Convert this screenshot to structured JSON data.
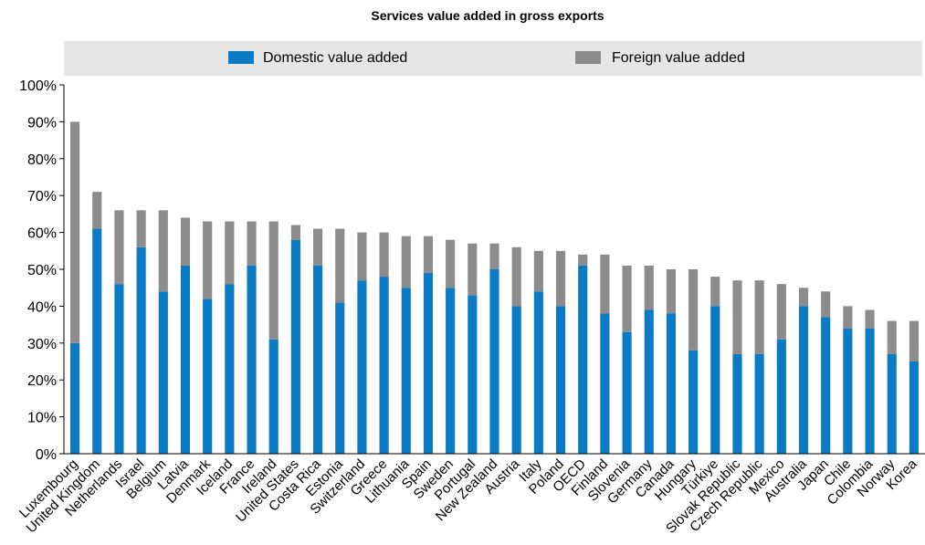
{
  "chart_data": {
    "type": "bar",
    "stacked": true,
    "title": "Services value added in gross exports",
    "ylim": [
      0,
      100
    ],
    "yticks": [
      "0%",
      "10%",
      "20%",
      "30%",
      "40%",
      "50%",
      "60%",
      "70%",
      "80%",
      "90%",
      "100%"
    ],
    "legend_position": "top",
    "categories": [
      "Luxembourg",
      "United Kingdom",
      "Netherlands",
      "Israel",
      "Belgium",
      "Latvia",
      "Denmark",
      "Iceland",
      "France",
      "Ireland",
      "United States",
      "Costa Rica",
      "Estonia",
      "Switzerland",
      "Greece",
      "Lithuania",
      "Spain",
      "Sweden",
      "Portugal",
      "New Zealand",
      "Austria",
      "Italy",
      "Poland",
      "OECD",
      "Finland",
      "Slovenia",
      "Germany",
      "Canada",
      "Hungary",
      "Türkiye",
      "Slovak Republic",
      "Czech Republic",
      "Mexico",
      "Australia",
      "Japan",
      "Chile",
      "Colombia",
      "Norway",
      "Korea"
    ],
    "series": [
      {
        "name": "Domestic value added",
        "color": "#0a7bc4",
        "values": [
          30,
          61,
          46,
          56,
          44,
          51,
          42,
          46,
          51,
          31,
          58,
          51,
          41,
          47,
          48,
          45,
          49,
          45,
          43,
          50,
          40,
          44,
          40,
          51,
          38,
          33,
          39,
          38,
          28,
          40,
          27,
          27,
          31,
          40,
          37,
          34,
          34,
          27,
          25
        ]
      },
      {
        "name": "Foreign value added",
        "color": "#8c8c8c",
        "values": [
          60,
          10,
          20,
          10,
          22,
          13,
          21,
          17,
          12,
          32,
          4,
          10,
          20,
          13,
          12,
          14,
          10,
          13,
          14,
          7,
          16,
          11,
          15,
          3,
          16,
          18,
          12,
          12,
          22,
          8,
          20,
          20,
          15,
          5,
          7,
          6,
          5,
          9,
          11
        ]
      }
    ],
    "grid": false
  }
}
